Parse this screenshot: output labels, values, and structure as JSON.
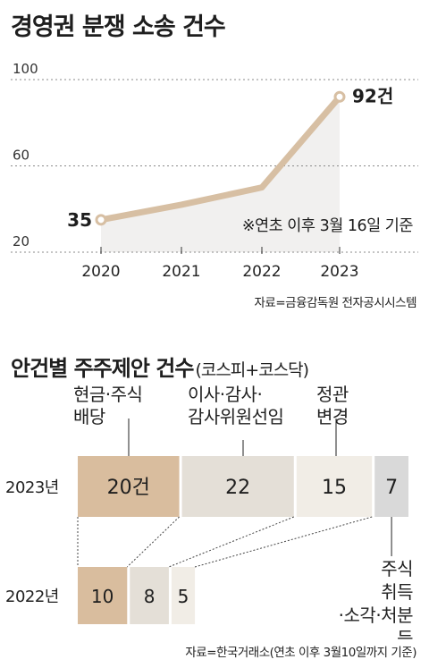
{
  "chart1": {
    "title": "경영권 분쟁 소송 건수",
    "note": "※연초 이후 3월 16일 기준",
    "source": "자료=금융감독원 전자공시시스템"
  },
  "chart2": {
    "title": "안건별 주주제안 건수",
    "subtitle": "(코스피+코스닥)",
    "source": "자료=한국거래소(연초 이후 3월10일까지 기준)"
  },
  "colors": {
    "line": "#d7bfa3",
    "area": "#f1f0ef",
    "bar_dividend": "#d9bd9e",
    "bar_director": "#e4dfd7",
    "bar_articles": "#f1ede6",
    "bar_acquisition": "#d9d9d9"
  },
  "chart_data": [
    {
      "type": "line",
      "title": "경영권 분쟁 소송 건수",
      "x": [
        "2020",
        "2021",
        "2022",
        "2023"
      ],
      "series": [
        {
          "values": [
            35,
            42,
            50,
            92
          ]
        }
      ],
      "point_labels": {
        "2020": "35",
        "2023": "92건"
      },
      "ylim": [
        20,
        100
      ],
      "yticks": [
        "100",
        "60",
        "20"
      ],
      "annotation": "※연초 이후 3월 16일 기준"
    },
    {
      "type": "bar",
      "title": "안건별 주주제안 건수",
      "subtitle": "(코스피+코스닥)",
      "categories": [
        "2023년",
        "2022년"
      ],
      "series": [
        {
          "name": "현금·주식 배당",
          "values": [
            20,
            10
          ],
          "labels": [
            "20건",
            "10"
          ]
        },
        {
          "name": "이사·감사· 감사위원선임",
          "values": [
            22,
            8
          ],
          "labels": [
            "22",
            "8"
          ]
        },
        {
          "name": "정관 변경",
          "values": [
            15,
            5
          ],
          "labels": [
            "15",
            "5"
          ]
        },
        {
          "name": "주식 취득 ·소각·처분 등",
          "values": [
            7,
            0
          ],
          "labels": [
            "7",
            ""
          ]
        }
      ]
    }
  ]
}
